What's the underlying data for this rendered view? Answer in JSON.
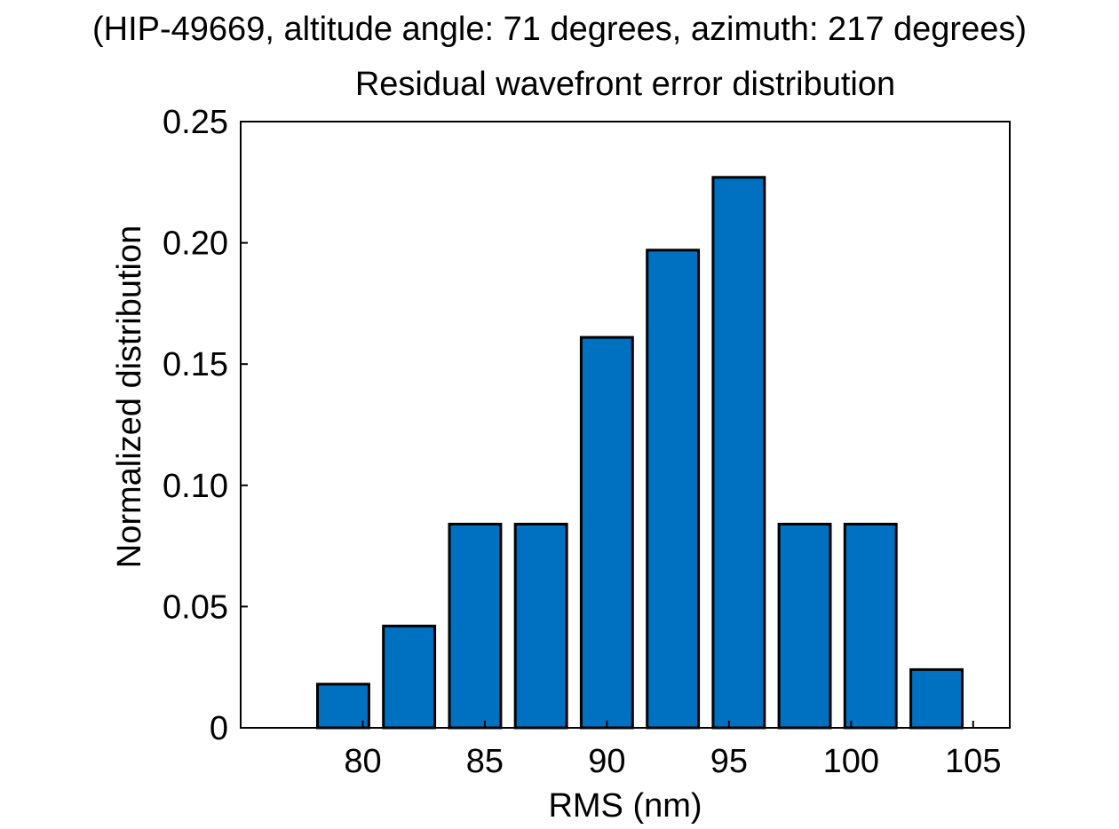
{
  "chart_data": {
    "type": "bar",
    "title": "(HIP-49669, altitude angle: 71 degrees, azimuth: 217 degrees)",
    "subtitle": "Residual wavefront error distribution",
    "xlabel": "RMS (nm)",
    "ylabel": "Normalized distribution",
    "x": [
      79.2,
      81.9,
      84.6,
      87.3,
      90.0,
      92.7,
      95.4,
      98.1,
      100.8,
      103.5
    ],
    "values": [
      0.018,
      0.042,
      0.084,
      0.084,
      0.161,
      0.197,
      0.227,
      0.084,
      0.084,
      0.024
    ],
    "bin_width": 2.7,
    "xlim": [
      75,
      106.5
    ],
    "ylim": [
      0,
      0.25
    ],
    "xticks": [
      80,
      85,
      90,
      95,
      100,
      105
    ],
    "xtick_labels": [
      "80",
      "85",
      "90",
      "95",
      "100",
      "105"
    ],
    "yticks": [
      0,
      0.05,
      0.1,
      0.15,
      0.2,
      0.25
    ],
    "ytick_labels": [
      "0",
      "0.05",
      "0.10",
      "0.15",
      "0.20",
      "0.25"
    ],
    "grid": false,
    "bar_color": "#0070c0",
    "bar_edge_color": "#000000"
  }
}
